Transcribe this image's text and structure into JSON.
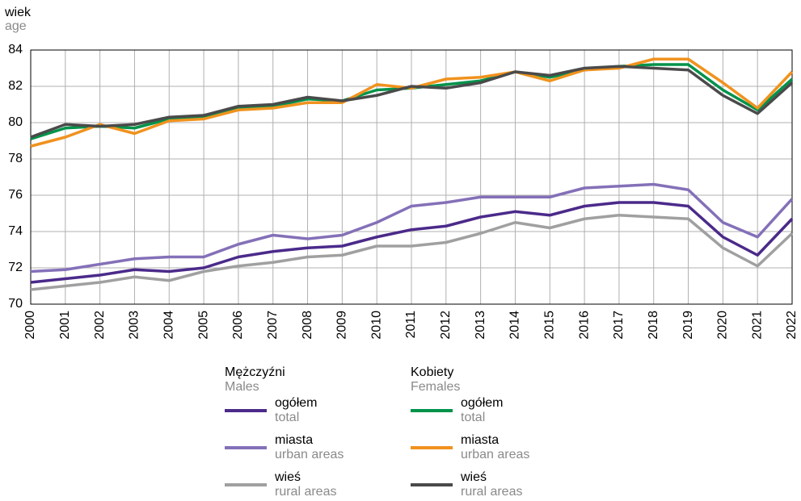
{
  "chart_data": {
    "type": "line",
    "y_label": "wiek",
    "y_label_en": "age",
    "categories": [
      "2000",
      "2001",
      "2002",
      "2003",
      "2004",
      "2005",
      "2006",
      "2007",
      "2008",
      "2009",
      "2010",
      "2011",
      "2012",
      "2013",
      "2014",
      "2015",
      "2016",
      "2017",
      "2018",
      "2019",
      "2020",
      "2021",
      "2022"
    ],
    "ylim": [
      70,
      84
    ],
    "yticks": [
      70,
      72,
      74,
      76,
      78,
      80,
      82,
      84
    ],
    "grid": true,
    "legend_groups": [
      {
        "title": "Mężczyźni",
        "subtitle": "Males"
      },
      {
        "title": "Kobiety",
        "subtitle": "Females"
      }
    ],
    "series": [
      {
        "name": "ogółem",
        "name_en": "total",
        "color": "#4b2a8a",
        "values": [
          71.2,
          71.4,
          71.6,
          71.9,
          71.8,
          72.0,
          72.6,
          72.9,
          73.1,
          73.2,
          73.7,
          74.1,
          74.3,
          74.8,
          75.1,
          74.9,
          75.4,
          75.6,
          75.6,
          75.4,
          73.7,
          72.7,
          74.7
        ]
      },
      {
        "name": "miasta",
        "name_en": "urban areas",
        "color": "#8470b8",
        "values": [
          71.8,
          71.9,
          72.2,
          72.5,
          72.6,
          72.6,
          73.3,
          73.8,
          73.6,
          73.8,
          74.5,
          75.4,
          75.6,
          75.9,
          75.9,
          75.9,
          76.4,
          76.5,
          76.6,
          76.3,
          74.5,
          73.7,
          75.8
        ]
      },
      {
        "name": "wieś",
        "name_en": "rural areas",
        "color": "#a0a0a0",
        "values": [
          70.8,
          71.0,
          71.2,
          71.5,
          71.3,
          71.8,
          72.1,
          72.3,
          72.6,
          72.7,
          73.2,
          73.2,
          73.4,
          73.9,
          74.5,
          74.2,
          74.7,
          74.9,
          74.8,
          74.7,
          73.1,
          72.1,
          73.9
        ]
      },
      {
        "name": "ogółem",
        "name_en": "total",
        "color": "#00934a",
        "values": [
          79.1,
          79.7,
          79.8,
          79.7,
          80.2,
          80.3,
          80.8,
          80.9,
          81.3,
          81.2,
          81.8,
          81.9,
          82.1,
          82.3,
          82.8,
          82.5,
          82.9,
          83.1,
          83.2,
          83.2,
          81.8,
          80.7,
          82.4
        ]
      },
      {
        "name": "miasta",
        "name_en": "urban areas",
        "color": "#f0921e",
        "values": [
          78.7,
          79.2,
          79.9,
          79.4,
          80.1,
          80.2,
          80.7,
          80.8,
          81.1,
          81.1,
          82.1,
          81.9,
          82.4,
          82.5,
          82.8,
          82.3,
          82.9,
          83.0,
          83.5,
          83.5,
          82.2,
          80.8,
          82.8
        ]
      },
      {
        "name": "wieś",
        "name_en": "rural areas",
        "color": "#4a4a4a",
        "values": [
          79.2,
          79.9,
          79.8,
          79.9,
          80.3,
          80.4,
          80.9,
          81.0,
          81.4,
          81.2,
          81.5,
          82.0,
          81.9,
          82.2,
          82.8,
          82.6,
          83.0,
          83.1,
          83.0,
          82.9,
          81.5,
          80.5,
          82.2
        ]
      }
    ]
  }
}
